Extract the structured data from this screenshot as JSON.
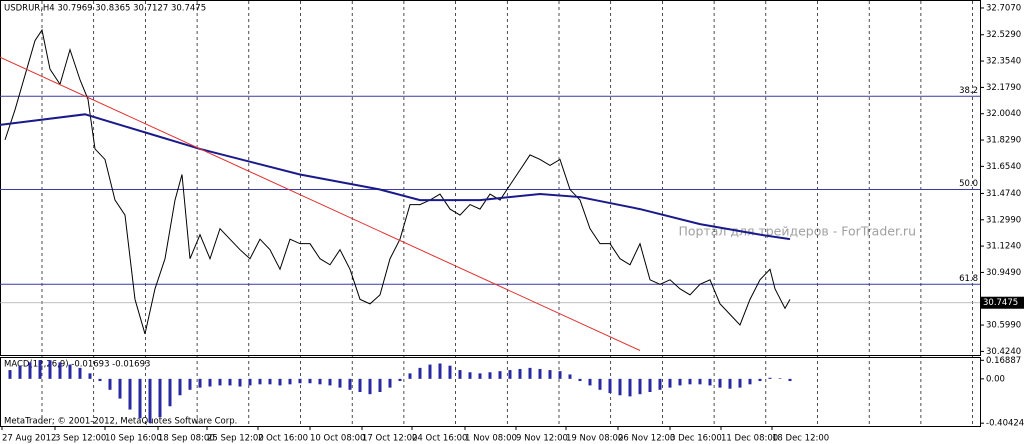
{
  "chart_data": [
    {
      "type": "line",
      "title": "USDRUR,H4 30.7969 30.8365 30.7127 30.7475",
      "watermark": "Портал для трейдеров - ForTrader.ru",
      "footer": "MetaTrader; © 2001-2012, MetaQuotes Software Corp.",
      "xlim": [
        0,
        98
      ],
      "ylim": [
        30.4,
        32.76
      ],
      "xticks": [
        {
          "value": 0.2,
          "label": "27 Aug 2012"
        },
        {
          "value": 5.5,
          "label": "3 Sep 12:00"
        },
        {
          "value": 10.5,
          "label": "10 Sep 16:00"
        },
        {
          "value": 15.8,
          "label": "18 Sep 08:00"
        },
        {
          "value": 20.7,
          "label": "25 Sep 12:00"
        },
        {
          "value": 25.8,
          "label": "2 Oct 16:00"
        },
        {
          "value": 31,
          "label": "10 Oct 08:00"
        },
        {
          "value": 36.2,
          "label": "17 Oct 12:00"
        },
        {
          "value": 41.2,
          "label": "24 Oct 16:00"
        },
        {
          "value": 46.5,
          "label": "1 Nov 08:00"
        },
        {
          "value": 51.6,
          "label": "9 Nov 12:00"
        },
        {
          "value": 56.6,
          "label": "19 Nov 08:00"
        },
        {
          "value": 61.8,
          "label": "26 Nov 12:00"
        },
        {
          "value": 67,
          "label": "3 Dec 16:00"
        },
        {
          "value": 72.1,
          "label": "11 Dec 08:00"
        },
        {
          "value": 77.2,
          "label": "18 Dec 12:00"
        }
      ],
      "yticks": [
        {
          "value": 32.707,
          "label": "32.7070"
        },
        {
          "value": 32.529,
          "label": "32.5290"
        },
        {
          "value": 32.354,
          "label": "32.3540"
        },
        {
          "value": 32.179,
          "label": "32.1790"
        },
        {
          "value": 32.004,
          "label": "32.0040"
        },
        {
          "value": 31.829,
          "label": "31.8290"
        },
        {
          "value": 31.654,
          "label": "31.6540"
        },
        {
          "value": 31.474,
          "label": "31.4740"
        },
        {
          "value": 31.299,
          "label": "31.2990"
        },
        {
          "value": 31.124,
          "label": "31.1240"
        },
        {
          "value": 30.949,
          "label": "30.9490"
        },
        {
          "value": 30.599,
          "label": "30.5990"
        },
        {
          "value": 30.424,
          "label": "30.4240"
        }
      ],
      "last": 30.7475,
      "levels": [
        {
          "value": 32.12,
          "label": "38.2"
        },
        {
          "value": 31.5,
          "label": "50.0"
        },
        {
          "value": 30.87,
          "label": "61.8"
        }
      ],
      "level_color": "#3a3aa8",
      "series": [
        {
          "color": "#000000",
          "x": [
            0.5,
            1.5,
            2.5,
            3.5,
            4.2,
            5,
            6,
            7,
            8,
            8.8,
            9.5,
            10.5,
            11.5,
            12.5,
            13.5,
            14.5,
            15.5,
            16.5,
            17.5,
            18.2,
            19,
            20,
            21,
            22,
            23,
            24,
            25,
            26,
            27,
            28,
            29,
            30,
            31,
            32,
            33,
            34,
            35,
            36,
            37,
            38,
            39,
            40,
            41,
            42,
            43,
            44,
            45,
            46,
            47,
            48,
            49,
            50,
            51,
            52,
            53,
            54,
            55,
            56,
            57,
            58,
            59,
            60,
            61,
            62,
            63,
            64,
            65,
            66,
            67,
            68,
            69,
            70,
            71,
            72,
            73,
            74,
            75,
            76,
            77,
            77.5,
            78.5,
            79
          ],
          "values": [
            31.83,
            32.03,
            32.26,
            32.49,
            32.56,
            32.3,
            32.2,
            32.43,
            32.23,
            32.1,
            31.77,
            31.7,
            31.43,
            31.33,
            30.77,
            30.54,
            30.84,
            31.04,
            31.43,
            31.6,
            31.04,
            31.2,
            31.04,
            31.24,
            31.17,
            31.1,
            31.04,
            31.17,
            31.1,
            30.97,
            31.17,
            31.14,
            31.14,
            31.04,
            31.0,
            31.1,
            30.97,
            30.77,
            30.74,
            30.8,
            31.04,
            31.17,
            31.4,
            31.4,
            31.43,
            31.47,
            31.37,
            31.33,
            31.4,
            31.37,
            31.47,
            31.43,
            31.53,
            31.63,
            31.73,
            31.7,
            31.66,
            31.7,
            31.5,
            31.43,
            31.24,
            31.14,
            31.14,
            31.04,
            31.0,
            31.14,
            30.9,
            30.87,
            30.9,
            30.84,
            30.8,
            30.87,
            30.9,
            30.74,
            30.67,
            30.6,
            30.77,
            30.9,
            30.97,
            30.84,
            30.71,
            30.77
          ]
        },
        {
          "color": "#1a1a8c",
          "x": [
            0,
            8.5,
            15,
            20,
            30,
            38,
            42,
            48,
            54,
            58,
            64,
            70,
            76,
            79
          ],
          "values": [
            31.93,
            32.0,
            31.87,
            31.77,
            31.6,
            31.5,
            31.43,
            31.43,
            31.47,
            31.45,
            31.37,
            31.27,
            31.2,
            31.17
          ]
        },
        {
          "color": "#e03030",
          "x": [
            0,
            64
          ],
          "values": [
            32.38,
            30.43
          ]
        }
      ]
    },
    {
      "type": "bar",
      "title": "MACD(12,26,9) -0.01693 -0.01693",
      "color": "#2a2aa0",
      "ylim": [
        -0.43,
        0.19
      ],
      "yticks": [
        0.16887,
        {
          "value": 0,
          "label": "0.00"
        },
        -0.40424
      ],
      "x": [
        1,
        2,
        3,
        4,
        5,
        6,
        7,
        8,
        9,
        10,
        11,
        12,
        13,
        14,
        15,
        16,
        17,
        18,
        19,
        20,
        21,
        22,
        23,
        24,
        25,
        26,
        27,
        28,
        29,
        30,
        31,
        32,
        33,
        34,
        35,
        36,
        37,
        38,
        39,
        40,
        41,
        42,
        43,
        44,
        45,
        46,
        47,
        48,
        49,
        50,
        51,
        52,
        53,
        54,
        55,
        56,
        57,
        58,
        59,
        60,
        61,
        62,
        63,
        64,
        65,
        66,
        67,
        68,
        69,
        70,
        71,
        72,
        73,
        74,
        75,
        76,
        77,
        78,
        79
      ],
      "values": [
        0.08,
        0.12,
        0.15,
        0.17,
        0.17,
        0.15,
        0.13,
        0.1,
        0.05,
        -0.02,
        -0.1,
        -0.18,
        -0.28,
        -0.36,
        -0.4,
        -0.35,
        -0.25,
        -0.15,
        -0.1,
        -0.08,
        -0.07,
        -0.06,
        -0.06,
        -0.07,
        -0.06,
        -0.05,
        -0.05,
        -0.06,
        -0.05,
        -0.04,
        -0.04,
        -0.05,
        -0.06,
        -0.08,
        -0.1,
        -0.12,
        -0.14,
        -0.12,
        -0.08,
        -0.02,
        0.05,
        0.1,
        0.13,
        0.14,
        0.12,
        0.08,
        0.06,
        0.05,
        0.06,
        0.07,
        0.08,
        0.09,
        0.1,
        0.09,
        0.08,
        0.07,
        0.04,
        -0.02,
        -0.06,
        -0.1,
        -0.13,
        -0.15,
        -0.16,
        -0.14,
        -0.12,
        -0.1,
        -0.08,
        -0.06,
        -0.05,
        -0.05,
        -0.06,
        -0.08,
        -0.09,
        -0.08,
        -0.05,
        -0.02,
        0.01,
        0.005,
        -0.02
      ]
    }
  ]
}
